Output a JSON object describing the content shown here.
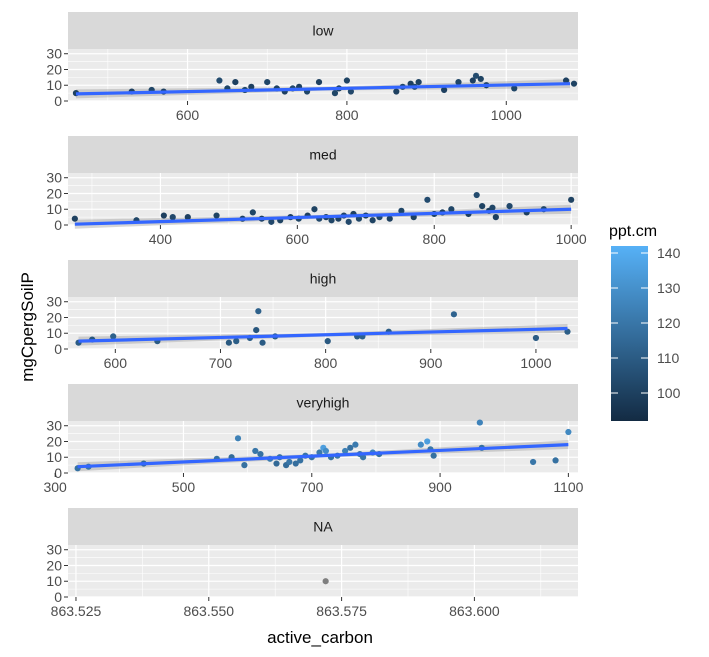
{
  "chart_data": {
    "type": "scatter",
    "facet_variable": "ppt level",
    "xlabel": "active_carbon",
    "ylabel": "mgCpergSoilP",
    "smoothing": "linear regression line with confidence band per facet",
    "color_legend": {
      "title": "ppt.cm",
      "type": "continuous",
      "range": [
        92,
        142
      ],
      "ticks": [
        100,
        110,
        120,
        130,
        140
      ],
      "low_color": "#132B43",
      "high_color": "#56B1F7"
    },
    "colors": {
      "trend_line": "#3366FF",
      "confidence_band": "#999999",
      "panel_background": "#EBEBEB",
      "strip_background": "#D9D9D9",
      "grid_major": "#FFFFFF",
      "na_point": "#7F7F7F"
    },
    "facets": [
      {
        "label": "low",
        "x_ticks": [
          600,
          800,
          1000
        ],
        "x_tick_labels": [
          "600",
          "800",
          "1000"
        ],
        "xlim": [
          450,
          1090
        ],
        "y_ticks": [
          0,
          10,
          20,
          30
        ],
        "ylim": [
          0,
          33
        ],
        "trend": [
          [
            460,
            4.5
          ],
          [
            1080,
            11.0
          ]
        ],
        "points": [
          [
            460,
            5,
            100
          ],
          [
            530,
            6,
            100
          ],
          [
            555,
            7,
            102
          ],
          [
            570,
            6,
            100
          ],
          [
            640,
            13,
            104
          ],
          [
            650,
            8,
            102
          ],
          [
            660,
            12,
            100
          ],
          [
            672,
            7,
            103
          ],
          [
            680,
            9,
            100
          ],
          [
            700,
            12,
            102
          ],
          [
            712,
            8,
            101
          ],
          [
            722,
            6,
            100
          ],
          [
            732,
            8,
            103
          ],
          [
            740,
            9,
            100
          ],
          [
            750,
            6,
            102
          ],
          [
            765,
            12,
            100
          ],
          [
            785,
            5,
            102
          ],
          [
            790,
            8,
            100
          ],
          [
            800,
            13,
            101
          ],
          [
            805,
            6,
            103
          ],
          [
            862,
            6,
            100
          ],
          [
            870,
            9,
            102
          ],
          [
            880,
            11,
            100
          ],
          [
            885,
            9,
            103
          ],
          [
            890,
            12,
            101
          ],
          [
            922,
            7,
            100
          ],
          [
            940,
            12,
            102
          ],
          [
            958,
            13,
            100
          ],
          [
            962,
            16,
            104
          ],
          [
            968,
            14,
            101
          ],
          [
            975,
            10,
            100
          ],
          [
            1010,
            8,
            102
          ],
          [
            1075,
            13,
            100
          ],
          [
            1085,
            11,
            101
          ]
        ]
      },
      {
        "label": "med",
        "x_ticks": [
          400,
          600,
          800,
          1000
        ],
        "x_tick_labels": [
          "400",
          "600",
          "800",
          "1000"
        ],
        "xlim": [
          265,
          1010
        ],
        "y_ticks": [
          0,
          10,
          20,
          30
        ],
        "ylim": [
          0,
          33
        ],
        "trend": [
          [
            275,
            0.5
          ],
          [
            1000,
            10.0
          ]
        ],
        "points": [
          [
            275,
            4,
            100
          ],
          [
            365,
            3,
            102
          ],
          [
            405,
            6,
            100
          ],
          [
            418,
            5,
            103
          ],
          [
            440,
            5,
            100
          ],
          [
            482,
            6,
            101
          ],
          [
            520,
            4,
            100
          ],
          [
            535,
            8,
            102
          ],
          [
            548,
            4,
            100
          ],
          [
            562,
            2,
            103
          ],
          [
            575,
            3,
            101
          ],
          [
            590,
            5,
            100
          ],
          [
            602,
            4,
            102
          ],
          [
            615,
            6,
            100
          ],
          [
            625,
            10,
            101
          ],
          [
            632,
            4,
            103
          ],
          [
            642,
            5,
            100
          ],
          [
            650,
            3,
            102
          ],
          [
            660,
            4,
            100
          ],
          [
            668,
            6,
            101
          ],
          [
            675,
            2,
            103
          ],
          [
            682,
            7,
            100
          ],
          [
            690,
            4,
            102
          ],
          [
            700,
            6,
            100
          ],
          [
            710,
            3,
            101
          ],
          [
            720,
            5,
            103
          ],
          [
            735,
            4,
            100
          ],
          [
            752,
            9,
            102
          ],
          [
            770,
            5,
            100
          ],
          [
            790,
            16,
            104
          ],
          [
            800,
            7,
            101
          ],
          [
            812,
            8,
            100
          ],
          [
            825,
            10,
            102
          ],
          [
            850,
            7,
            100
          ],
          [
            862,
            19,
            104
          ],
          [
            870,
            12,
            101
          ],
          [
            880,
            9,
            100
          ],
          [
            885,
            11,
            102
          ],
          [
            890,
            5,
            100
          ],
          [
            910,
            12,
            103
          ],
          [
            935,
            8,
            100
          ],
          [
            960,
            10,
            102
          ],
          [
            1000,
            16,
            101
          ]
        ]
      },
      {
        "label": "high",
        "x_ticks": [
          600,
          700,
          800,
          900,
          1000
        ],
        "x_tick_labels": [
          "600",
          "700",
          "800",
          "900",
          "1000"
        ],
        "xlim": [
          555,
          1040
        ],
        "y_ticks": [
          0,
          10,
          20,
          30
        ],
        "ylim": [
          0,
          33
        ],
        "trend": [
          [
            565,
            5.0
          ],
          [
            1030,
            13.0
          ]
        ],
        "points": [
          [
            565,
            4,
            110
          ],
          [
            578,
            6,
            108
          ],
          [
            598,
            8,
            112
          ],
          [
            640,
            5,
            110
          ],
          [
            708,
            4,
            109
          ],
          [
            715,
            5,
            111
          ],
          [
            728,
            7,
            110
          ],
          [
            734,
            12,
            108
          ],
          [
            736,
            24,
            112
          ],
          [
            740,
            4,
            110
          ],
          [
            752,
            8,
            111
          ],
          [
            802,
            5,
            109
          ],
          [
            830,
            8,
            110
          ],
          [
            835,
            8,
            112
          ],
          [
            860,
            11,
            110
          ],
          [
            922,
            22,
            113
          ],
          [
            1000,
            7,
            110
          ],
          [
            1030,
            11,
            111
          ]
        ]
      },
      {
        "label": "veryhigh",
        "x_ticks": [
          300,
          500,
          700,
          900,
          1100
        ],
        "x_tick_labels": [
          "300",
          "500",
          "700",
          "900",
          "1100"
        ],
        "xlim": [
          320,
          1115
        ],
        "y_ticks": [
          0,
          10,
          20,
          30
        ],
        "ylim": [
          0,
          33
        ],
        "trend": [
          [
            335,
            4.0
          ],
          [
            1100,
            18.0
          ]
        ],
        "points": [
          [
            335,
            3,
            118
          ],
          [
            352,
            4,
            120
          ],
          [
            438,
            6,
            115
          ],
          [
            552,
            9,
            118
          ],
          [
            575,
            10,
            116
          ],
          [
            585,
            22,
            124
          ],
          [
            595,
            5,
            118
          ],
          [
            612,
            14,
            120
          ],
          [
            620,
            12,
            118
          ],
          [
            635,
            9,
            122
          ],
          [
            645,
            6,
            115
          ],
          [
            650,
            10,
            118
          ],
          [
            660,
            5,
            116
          ],
          [
            665,
            7,
            120
          ],
          [
            675,
            6,
            117
          ],
          [
            682,
            8,
            118
          ],
          [
            690,
            11,
            119
          ],
          [
            700,
            10,
            118
          ],
          [
            712,
            13,
            121
          ],
          [
            718,
            16,
            135
          ],
          [
            722,
            14,
            128
          ],
          [
            730,
            10,
            118
          ],
          [
            740,
            11,
            120
          ],
          [
            752,
            14,
            124
          ],
          [
            760,
            16,
            118
          ],
          [
            768,
            18,
            122
          ],
          [
            775,
            12,
            118
          ],
          [
            780,
            10,
            120
          ],
          [
            795,
            13,
            125
          ],
          [
            805,
            12,
            118
          ],
          [
            870,
            18,
            128
          ],
          [
            880,
            20,
            135
          ],
          [
            885,
            15,
            120
          ],
          [
            890,
            11,
            118
          ],
          [
            962,
            32,
            125
          ],
          [
            965,
            16,
            118
          ],
          [
            1045,
            7,
            120
          ],
          [
            1080,
            8,
            118
          ],
          [
            1100,
            26,
            127
          ]
        ]
      },
      {
        "label": "NA",
        "x_ticks": [
          863.525,
          863.55,
          863.575,
          863.6
        ],
        "x_tick_labels": [
          "863.525",
          "863.550",
          "863.575",
          "863.600"
        ],
        "xlim": [
          863.5235,
          863.6195
        ],
        "y_ticks": [
          0,
          10,
          20,
          30
        ],
        "ylim": [
          0,
          33
        ],
        "trend": null,
        "points": [
          [
            863.572,
            10,
            null
          ]
        ]
      }
    ]
  }
}
